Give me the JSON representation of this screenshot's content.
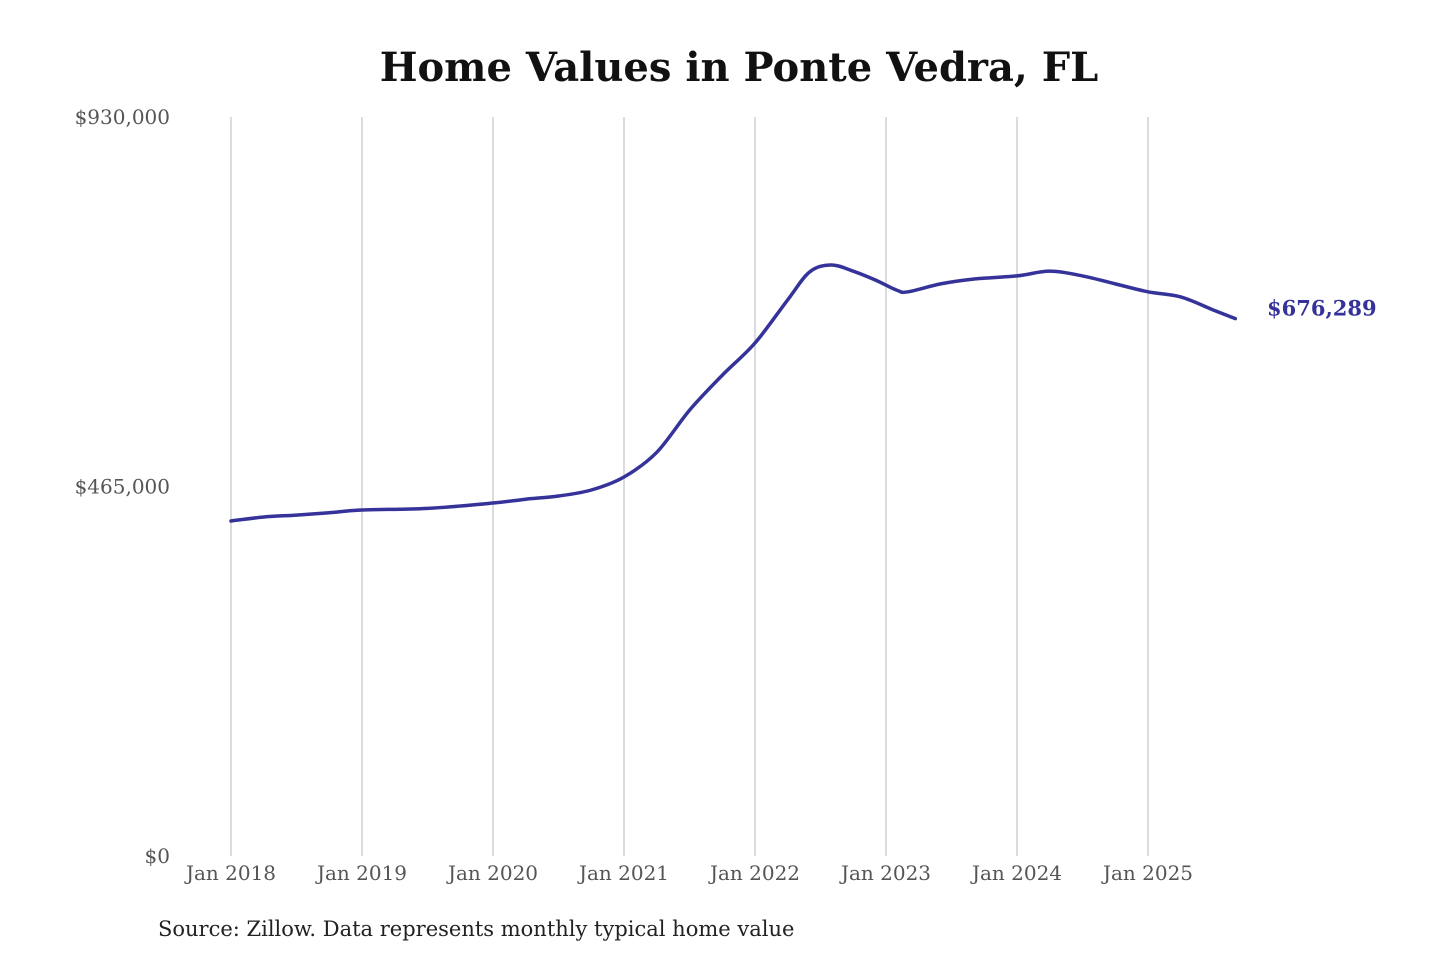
{
  "chart_data": {
    "type": "line",
    "title": "Home Values in Ponte Vedra, FL",
    "source": "Source: Zillow. Data represents monthly typical home value",
    "xlabel": "",
    "ylabel": "",
    "x_ticks": [
      "Jan 2018",
      "Jan 2019",
      "Jan 2020",
      "Jan 2021",
      "Jan 2022",
      "Jan 2023",
      "Jan 2024",
      "Jan 2025"
    ],
    "y_ticks": [
      "$930,000",
      "$465,000",
      "$0"
    ],
    "y_tick_values": [
      930000,
      465000,
      0
    ],
    "ylim": [
      0,
      930000
    ],
    "grid": "vertical lines at x ticks",
    "line_color": "#35339a",
    "end_label": "$676,289",
    "series": [
      {
        "x": [
          "2018-01",
          "2018-04",
          "2018-07",
          "2018-10",
          "2019-01",
          "2019-07",
          "2020-01",
          "2020-04",
          "2020-07",
          "2020-10",
          "2021-01",
          "2021-04",
          "2021-07",
          "2021-10",
          "2022-01",
          "2022-04",
          "2022-06",
          "2022-08",
          "2022-10",
          "2022-12",
          "2023-02",
          "2023-03",
          "2023-06",
          "2023-09",
          "2024-01",
          "2024-04",
          "2024-07",
          "2024-10",
          "2025-01",
          "2025-04",
          "2025-07",
          "2025-09"
        ],
        "values": [
          421600,
          426600,
          429000,
          432000,
          435400,
          437500,
          444200,
          449000,
          453000,
          460600,
          477000,
          508000,
          561000,
          605000,
          645600,
          700000,
          735000,
          743800,
          736000,
          725000,
          712000,
          710000,
          720000,
          726000,
          730000,
          736000,
          730000,
          720000,
          710000,
          703500,
          687000,
          676289
        ]
      }
    ]
  }
}
